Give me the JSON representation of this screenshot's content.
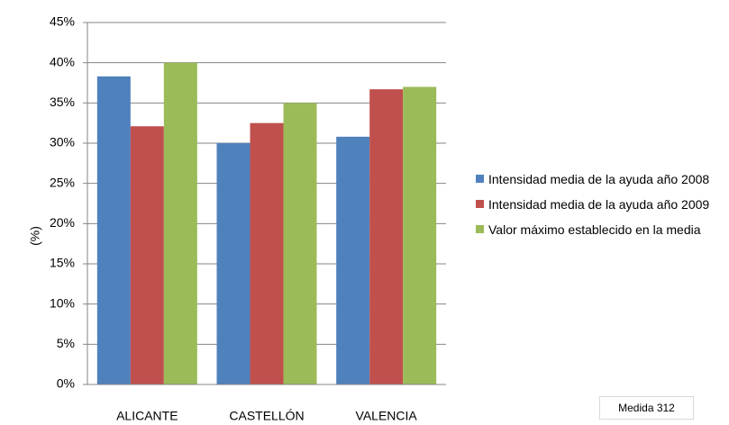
{
  "chart_data": {
    "type": "bar",
    "categories": [
      "ALICANTE",
      "CASTELLÓN",
      "VALENCIA"
    ],
    "series": [
      {
        "name": "Intensidad media de la ayuda año 2008",
        "color": "#4f81bd",
        "values": [
          38.3,
          30,
          30.8
        ]
      },
      {
        "name": "Intensidad media de la ayuda año 2009",
        "color": "#c0504d",
        "values": [
          32.1,
          32.5,
          36.7
        ]
      },
      {
        "name": "Valor máximo establecido  en la media",
        "color": "#9bbb59",
        "values": [
          40,
          35,
          37
        ]
      }
    ],
    "ylabel": "(%)",
    "ylim": [
      0,
      45
    ],
    "yticks": [
      {
        "value": 0,
        "label": "0%"
      },
      {
        "value": 5,
        "label": "5%"
      },
      {
        "value": 10,
        "label": "10%"
      },
      {
        "value": 15,
        "label": "15%"
      },
      {
        "value": 20,
        "label": "20%"
      },
      {
        "value": 25,
        "label": "25%"
      },
      {
        "value": 30,
        "label": "30%"
      },
      {
        "value": 35,
        "label": "35%"
      },
      {
        "value": 40,
        "label": "40%"
      },
      {
        "value": 45,
        "label": "45%"
      }
    ],
    "grid": true,
    "legend": "right",
    "annotation": "Medida 312"
  }
}
